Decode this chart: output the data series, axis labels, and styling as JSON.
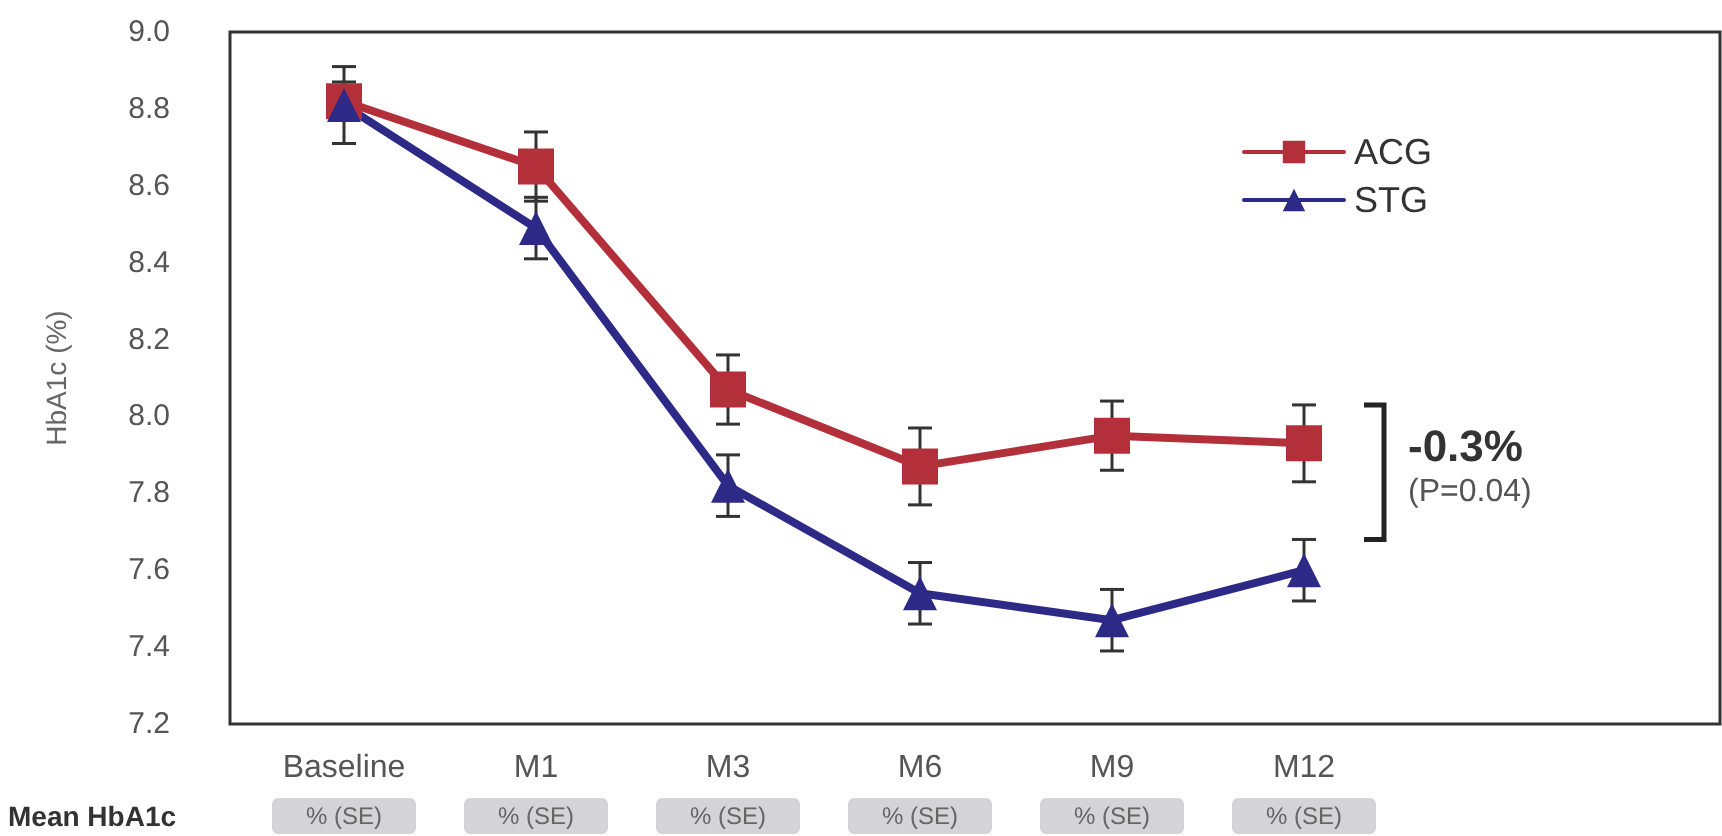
{
  "chart_data": {
    "type": "line",
    "ylabel": "HbA1c (%)",
    "categories": [
      "Baseline",
      "M1",
      "M3",
      "M6",
      "M9",
      "M12"
    ],
    "series": [
      {
        "name": "ACG",
        "color": "#b3303a",
        "marker": "square",
        "values": [
          8.82,
          8.65,
          8.07,
          7.87,
          7.95,
          7.93
        ],
        "errors": [
          0.05,
          0.09,
          0.09,
          0.1,
          0.09,
          0.1
        ]
      },
      {
        "name": "STG",
        "color": "#2c2a86",
        "marker": "triangle",
        "values": [
          8.81,
          8.49,
          7.82,
          7.54,
          7.47,
          7.6
        ],
        "errors": [
          0.1,
          0.08,
          0.08,
          0.08,
          0.08,
          0.08
        ]
      }
    ],
    "ylim": [
      7.2,
      9.0
    ],
    "yticks": [
      7.2,
      7.4,
      7.6,
      7.8,
      {
        "value": 8,
        "label": "8.0"
      },
      8.2,
      8.4,
      8.6,
      8.8,
      {
        "value": 9,
        "label": "9.0"
      }
    ],
    "grid": false,
    "legend": "top right",
    "line_style": "solid",
    "annotations": [
      "-0.3%",
      "(P=0.04)",
      "Mean HbA1c",
      "% (SE)",
      "% (SE)",
      "% (SE)",
      "% (SE)",
      "% (SE)",
      "% (SE)"
    ]
  }
}
